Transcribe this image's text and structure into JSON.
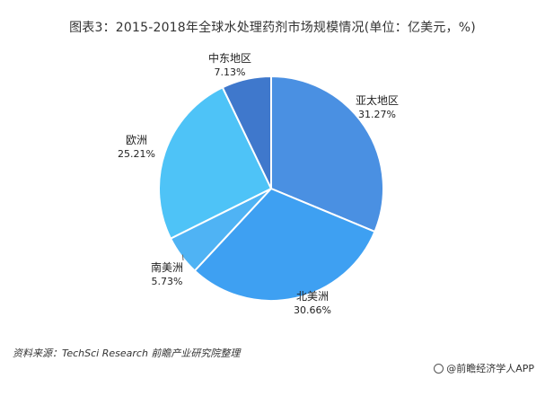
{
  "chart_data": {
    "type": "pie",
    "title": "图表3：2015-2018年全球水处理药剂市场规模情况(单位：亿美元，%)",
    "slices": [
      {
        "name": "亚太地区",
        "value": 31.27,
        "label": "31.27%",
        "color": "#4a90e2"
      },
      {
        "name": "北美洲",
        "value": 30.66,
        "label": "30.66%",
        "color": "#3ea0f2"
      },
      {
        "name": "南美洲",
        "value": 5.73,
        "label": "5.73%",
        "color": "#4fb3f4"
      },
      {
        "name": "欧洲",
        "value": 25.21,
        "label": "25.21%",
        "color": "#4ec3f7"
      },
      {
        "name": "中东地区",
        "value": 7.13,
        "label": "7.13%",
        "color": "#3f78cc"
      }
    ],
    "start_angle_deg": 0,
    "direction": "clockwise",
    "legend": "none",
    "source": "资料来源：TechSci Research 前瞻产业研究院整理"
  },
  "footer": {
    "brand": "@前瞻经济学人APP",
    "brand_icon": "circle-logo-icon"
  }
}
